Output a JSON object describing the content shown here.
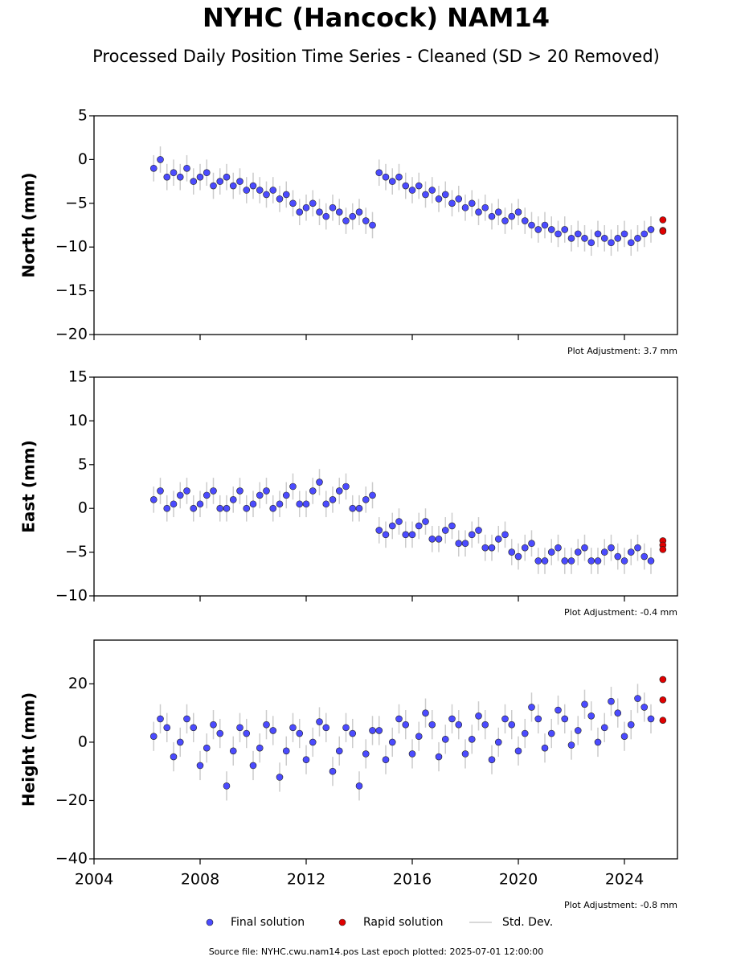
{
  "title": "NYHC (Hancock) NAM14",
  "subtitle": "Processed Daily Position Time Series - Cleaned (SD > 20 Removed)",
  "std_dev_label": "Std. Dev.",
  "source": "Source file: NYHC.cwu.nam14.pos  Last epoch plotted: 2025-07-01 12:00:00",
  "chart_data": [
    {
      "type": "scatter",
      "ylabel": "North (mm)",
      "annotation": "Plot Adjustment: 3.7 mm",
      "show_xtick_labels": false,
      "xlim": [
        2004,
        2026
      ],
      "xticks": [
        2004,
        2008,
        2012,
        2016,
        2020,
        2024
      ],
      "ylim": [
        -20,
        5
      ],
      "yticks": [
        {
          "value": -20,
          "label": "−20"
        },
        {
          "value": -15,
          "label": "−15"
        },
        {
          "value": -10,
          "label": "−10"
        },
        {
          "value": -5,
          "label": "−5"
        },
        0,
        5
      ],
      "std_dev": 1.5,
      "series": [
        {
          "name": "Final solution",
          "color": "#4b4bff",
          "x": [
            2006.25,
            2006.5,
            2006.75,
            2007,
            2007.25,
            2007.5,
            2007.75,
            2008,
            2008.25,
            2008.5,
            2008.75,
            2009,
            2009.25,
            2009.5,
            2009.75,
            2010,
            2010.25,
            2010.5,
            2010.75,
            2011,
            2011.25,
            2011.5,
            2011.75,
            2012,
            2012.25,
            2012.5,
            2012.75,
            2013,
            2013.25,
            2013.5,
            2013.75,
            2014,
            2014.25,
            2014.5,
            2014.75,
            2015,
            2015.25,
            2015.5,
            2015.75,
            2016,
            2016.25,
            2016.5,
            2016.75,
            2017,
            2017.25,
            2017.5,
            2017.75,
            2018,
            2018.25,
            2018.5,
            2018.75,
            2019,
            2019.25,
            2019.5,
            2019.75,
            2020,
            2020.25,
            2020.5,
            2020.75,
            2021,
            2021.25,
            2021.5,
            2021.75,
            2022,
            2022.25,
            2022.5,
            2022.75,
            2023,
            2023.25,
            2023.5,
            2023.75,
            2024,
            2024.25,
            2024.5,
            2024.75,
            2025
          ],
          "values": [
            -1,
            0,
            -2,
            -1.5,
            -2,
            -1,
            -2.5,
            -2,
            -1.5,
            -3,
            -2.5,
            -2,
            -3,
            -2.5,
            -3.5,
            -3,
            -3.5,
            -4,
            -3.5,
            -4.5,
            -4,
            -5,
            -6,
            -5.5,
            -5,
            -6,
            -6.5,
            -5.5,
            -6,
            -7,
            -6.5,
            -6,
            -7,
            -7.5,
            -1.5,
            -2,
            -2.5,
            -2,
            -3,
            -3.5,
            -3,
            -4,
            -3.5,
            -4.5,
            -4,
            -5,
            -4.5,
            -5.5,
            -5,
            -6,
            -5.5,
            -6.5,
            -6,
            -7,
            -6.5,
            -6,
            -7,
            -7.5,
            -8,
            -7.5,
            -8,
            -8.5,
            -8,
            -9,
            -8.5,
            -9,
            -9.5,
            -8.5,
            -9,
            -9.5,
            -9,
            -8.5,
            -9.5,
            -9,
            -8.5,
            -8
          ]
        },
        {
          "name": "Rapid solution",
          "color": "#e00000",
          "x": [
            2025.45,
            2025.45,
            2025.45
          ],
          "values": [
            -6.9,
            -8.1,
            -8.2
          ]
        }
      ]
    },
    {
      "type": "scatter",
      "ylabel": "East (mm)",
      "annotation": "Plot Adjustment: -0.4 mm",
      "show_xtick_labels": false,
      "xlim": [
        2004,
        2026
      ],
      "xticks": [
        2004,
        2008,
        2012,
        2016,
        2020,
        2024
      ],
      "ylim": [
        -10,
        15
      ],
      "yticks": [
        {
          "value": -10,
          "label": "−10"
        },
        {
          "value": -5,
          "label": "−5"
        },
        0,
        5,
        10,
        15
      ],
      "std_dev": 1.5,
      "series": [
        {
          "name": "Final solution",
          "color": "#4b4bff",
          "x": [
            2006.25,
            2006.5,
            2006.75,
            2007,
            2007.25,
            2007.5,
            2007.75,
            2008,
            2008.25,
            2008.5,
            2008.75,
            2009,
            2009.25,
            2009.5,
            2009.75,
            2010,
            2010.25,
            2010.5,
            2010.75,
            2011,
            2011.25,
            2011.5,
            2011.75,
            2012,
            2012.25,
            2012.5,
            2012.75,
            2013,
            2013.25,
            2013.5,
            2013.75,
            2014,
            2014.25,
            2014.5,
            2014.75,
            2015,
            2015.25,
            2015.5,
            2015.75,
            2016,
            2016.25,
            2016.5,
            2016.75,
            2017,
            2017.25,
            2017.5,
            2017.75,
            2018,
            2018.25,
            2018.5,
            2018.75,
            2019,
            2019.25,
            2019.5,
            2019.75,
            2020,
            2020.25,
            2020.5,
            2020.75,
            2021,
            2021.25,
            2021.5,
            2021.75,
            2022,
            2022.25,
            2022.5,
            2022.75,
            2023,
            2023.25,
            2023.5,
            2023.75,
            2024,
            2024.25,
            2024.5,
            2024.75,
            2025
          ],
          "values": [
            1,
            2,
            0,
            0.5,
            1.5,
            2,
            0,
            0.5,
            1.5,
            2,
            0,
            0,
            1,
            2,
            0,
            0.5,
            1.5,
            2,
            0,
            0.5,
            1.5,
            2.5,
            0.5,
            0.5,
            2,
            3,
            0.5,
            1,
            2,
            2.5,
            0,
            0,
            1,
            1.5,
            -2.5,
            -3,
            -2,
            -1.5,
            -3,
            -3,
            -2,
            -1.5,
            -3.5,
            -3.5,
            -2.5,
            -2,
            -4,
            -4,
            -3,
            -2.5,
            -4.5,
            -4.5,
            -3.5,
            -3,
            -5,
            -5.5,
            -4.5,
            -4,
            -6,
            -6,
            -5,
            -4.5,
            -6,
            -6,
            -5,
            -4.5,
            -6,
            -6,
            -5,
            -4.5,
            -5.5,
            -6,
            -5,
            -4.5,
            -5.5,
            -6
          ]
        },
        {
          "name": "Rapid solution",
          "color": "#e00000",
          "x": [
            2025.45,
            2025.45,
            2025.45
          ],
          "values": [
            -3.7,
            -4.2,
            -4.7
          ]
        }
      ]
    },
    {
      "type": "scatter",
      "ylabel": "Height (mm)",
      "annotation": "Plot Adjustment: -0.8 mm",
      "show_xtick_labels": true,
      "xlim": [
        2004,
        2026
      ],
      "xticks": [
        2004,
        2008,
        2012,
        2016,
        2020,
        2024
      ],
      "ylim": [
        -40,
        35
      ],
      "yticks": [
        {
          "value": -40,
          "label": "−40"
        },
        {
          "value": -20,
          "label": "−20"
        },
        0,
        20
      ],
      "std_dev": 5,
      "series": [
        {
          "name": "Final solution",
          "color": "#4b4bff",
          "x": [
            2006.25,
            2006.5,
            2006.75,
            2007,
            2007.25,
            2007.5,
            2007.75,
            2008,
            2008.25,
            2008.5,
            2008.75,
            2009,
            2009.25,
            2009.5,
            2009.75,
            2010,
            2010.25,
            2010.5,
            2010.75,
            2011,
            2011.25,
            2011.5,
            2011.75,
            2012,
            2012.25,
            2012.5,
            2012.75,
            2013,
            2013.25,
            2013.5,
            2013.75,
            2014,
            2014.25,
            2014.5,
            2014.75,
            2015,
            2015.25,
            2015.5,
            2015.75,
            2016,
            2016.25,
            2016.5,
            2016.75,
            2017,
            2017.25,
            2017.5,
            2017.75,
            2018,
            2018.25,
            2018.5,
            2018.75,
            2019,
            2019.25,
            2019.5,
            2019.75,
            2020,
            2020.25,
            2020.5,
            2020.75,
            2021,
            2021.25,
            2021.5,
            2021.75,
            2022,
            2022.25,
            2022.5,
            2022.75,
            2023,
            2023.25,
            2023.5,
            2023.75,
            2024,
            2024.25,
            2024.5,
            2024.75,
            2025
          ],
          "values": [
            2,
            8,
            5,
            -5,
            0,
            8,
            5,
            -8,
            -2,
            6,
            3,
            -15,
            -3,
            5,
            3,
            -8,
            -2,
            6,
            4,
            -12,
            -3,
            5,
            3,
            -6,
            0,
            7,
            5,
            -10,
            -3,
            5,
            3,
            -15,
            -4,
            4,
            4,
            -6,
            0,
            8,
            6,
            -4,
            2,
            10,
            6,
            -5,
            1,
            8,
            6,
            -4,
            1,
            9,
            6,
            -6,
            0,
            8,
            6,
            -3,
            3,
            12,
            8,
            -2,
            3,
            11,
            8,
            -1,
            4,
            13,
            9,
            0,
            5,
            14,
            10,
            2,
            6,
            15,
            12,
            8
          ]
        },
        {
          "name": "Rapid solution",
          "color": "#e00000",
          "x": [
            2025.45,
            2025.45,
            2025.45
          ],
          "values": [
            21.5,
            14.5,
            7.5
          ]
        }
      ]
    }
  ]
}
